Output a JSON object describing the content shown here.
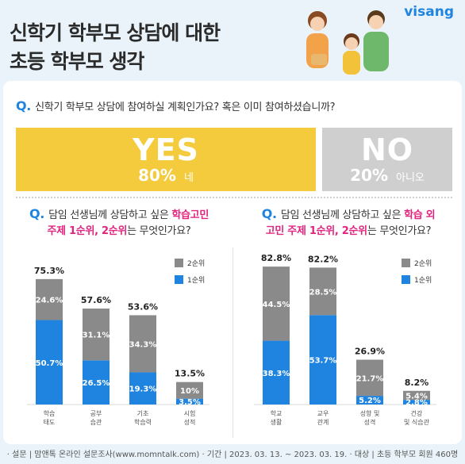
{
  "brand": {
    "logo": "visang"
  },
  "title": {
    "line1": "신학기 학부모 상담에 대한",
    "line2": "초등 학부모 생각"
  },
  "q1": {
    "mark": "Q.",
    "text": "신학기 학부모 상담에 참여하실 계획인가요? 혹은 이미 참여하셨습니까?"
  },
  "yes": {
    "label": "YES",
    "percent": "80%",
    "word": "네",
    "value": 80
  },
  "no": {
    "label": "NO",
    "percent": "20%",
    "word": "아니오",
    "value": 20
  },
  "q2": {
    "mark": "Q.",
    "pre": "담임 선생님께 상담하고 싶은 ",
    "hl1": "학습고민",
    "br": "",
    "hl2": "주제 1순위, 2순위",
    "post": "는 무엇인가요?"
  },
  "q3": {
    "mark": "Q.",
    "pre": "담임 선생님께 상담하고 싶은 ",
    "hl1": "학습 외",
    "hl2": "고민 주제 1순위, 2순위",
    "post": "는 무엇인가요?"
  },
  "colors": {
    "first": "#1f84e0",
    "second": "#8a8a8a",
    "yes": "#f4cb3c",
    "no": "#cfcfcf",
    "highlight": "#e0257f"
  },
  "chart_data": [
    {
      "type": "bar",
      "stacked": true,
      "categories": [
        "학습\n태도",
        "공부\n습관",
        "기초\n학습력",
        "시험\n성적"
      ],
      "totals": [
        "75.3%",
        "57.6%",
        "53.6%",
        "13.5%"
      ],
      "series": [
        {
          "name": "1순위",
          "values": [
            50.7,
            26.5,
            19.3,
            3.5
          ],
          "labels": [
            "50.7%",
            "26.5%",
            "19.3%",
            "3.5%"
          ]
        },
        {
          "name": "2순위",
          "values": [
            24.6,
            31.1,
            34.3,
            10
          ],
          "labels": [
            "24.6%",
            "31.1%",
            "34.3%",
            "10%"
          ]
        }
      ],
      "legend": [
        "2순위",
        "1순위"
      ],
      "legend_position": "top-right"
    },
    {
      "type": "bar",
      "stacked": true,
      "categories": [
        "학교\n생활",
        "교우\n관계",
        "성향 및\n성격",
        "건강\n및 식습관"
      ],
      "totals": [
        "82.8%",
        "82.2%",
        "26.9%",
        "8.2%"
      ],
      "series": [
        {
          "name": "1순위",
          "values": [
            38.3,
            53.7,
            5.2,
            2.8
          ],
          "labels": [
            "38.3%",
            "53.7%",
            "5.2%",
            "2.8%"
          ]
        },
        {
          "name": "2순위",
          "values": [
            44.5,
            28.5,
            21.7,
            5.4
          ],
          "labels": [
            "44.5%",
            "28.5%",
            "21.7%",
            "5.4%"
          ]
        }
      ],
      "legend": [
        "2순위",
        "1순위"
      ],
      "legend_position": "top-right"
    }
  ],
  "footer": {
    "text": "· 설문 | 맘앤톡 온라인 설문조사(www.momntalk.com) · 기간 | 2023. 03. 13. ~ 2023. 03. 19. · 대상 | 초등 학부모 회원 460명"
  }
}
